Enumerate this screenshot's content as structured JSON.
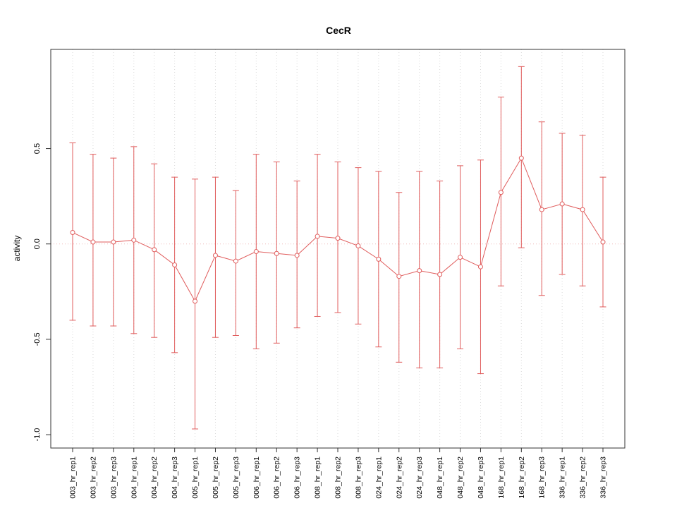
{
  "chart_data": {
    "type": "line",
    "title": "CecR",
    "xlabel": "",
    "ylabel": "activity",
    "categories": [
      "003_hr_rep1",
      "003_hr_rep2",
      "003_hr_rep3",
      "004_hr_rep1",
      "004_hr_rep2",
      "004_hr_rep3",
      "005_hr_rep1",
      "005_hr_rep2",
      "005_hr_rep3",
      "006_hr_rep1",
      "006_hr_rep2",
      "006_hr_rep3",
      "008_hr_rep1",
      "008_hr_rep2",
      "008_hr_rep3",
      "024_hr_rep1",
      "024_hr_rep2",
      "024_hr_rep3",
      "048_hr_rep1",
      "048_hr_rep2",
      "048_hr_rep3",
      "168_hr_rep1",
      "168_hr_rep2",
      "168_hr_rep3",
      "336_hr_rep1",
      "336_hr_rep2",
      "336_hr_rep3"
    ],
    "series": [
      {
        "name": "activity",
        "values": [
          0.06,
          0.01,
          0.01,
          0.02,
          -0.03,
          -0.11,
          -0.3,
          -0.06,
          -0.09,
          -0.04,
          -0.05,
          -0.06,
          0.04,
          0.03,
          -0.01,
          -0.08,
          -0.17,
          -0.14,
          -0.16,
          -0.07,
          -0.12,
          0.27,
          0.45,
          0.18,
          0.21,
          0.18,
          0.01
        ],
        "upper": [
          0.53,
          0.47,
          0.45,
          0.51,
          0.42,
          0.35,
          0.34,
          0.35,
          0.28,
          0.47,
          0.43,
          0.33,
          0.47,
          0.43,
          0.4,
          0.38,
          0.27,
          0.38,
          0.33,
          0.41,
          0.44,
          0.77,
          0.93,
          0.64,
          0.58,
          0.57,
          0.35
        ],
        "lower": [
          -0.4,
          -0.43,
          -0.43,
          -0.47,
          -0.49,
          -0.57,
          -0.97,
          -0.49,
          -0.48,
          -0.55,
          -0.52,
          -0.44,
          -0.38,
          -0.36,
          -0.42,
          -0.54,
          -0.62,
          -0.65,
          -0.65,
          -0.55,
          -0.68,
          -0.22,
          -0.02,
          -0.27,
          -0.16,
          -0.22,
          -0.33
        ]
      }
    ],
    "ytick_values": [
      -1.0,
      -0.5,
      0.0,
      0.5
    ],
    "ytick_labels": [
      "-1.0",
      "-0.5",
      "0.0",
      "0.5"
    ],
    "ylim": [
      -1.07,
      1.02
    ],
    "grid": "vertical-dotted",
    "zero_line": true,
    "legend": "none",
    "colors": {
      "series": "#e05c5c",
      "zero_line": "#f0bcbc",
      "gridline": "#d9d9d9",
      "box": "#333333"
    }
  }
}
